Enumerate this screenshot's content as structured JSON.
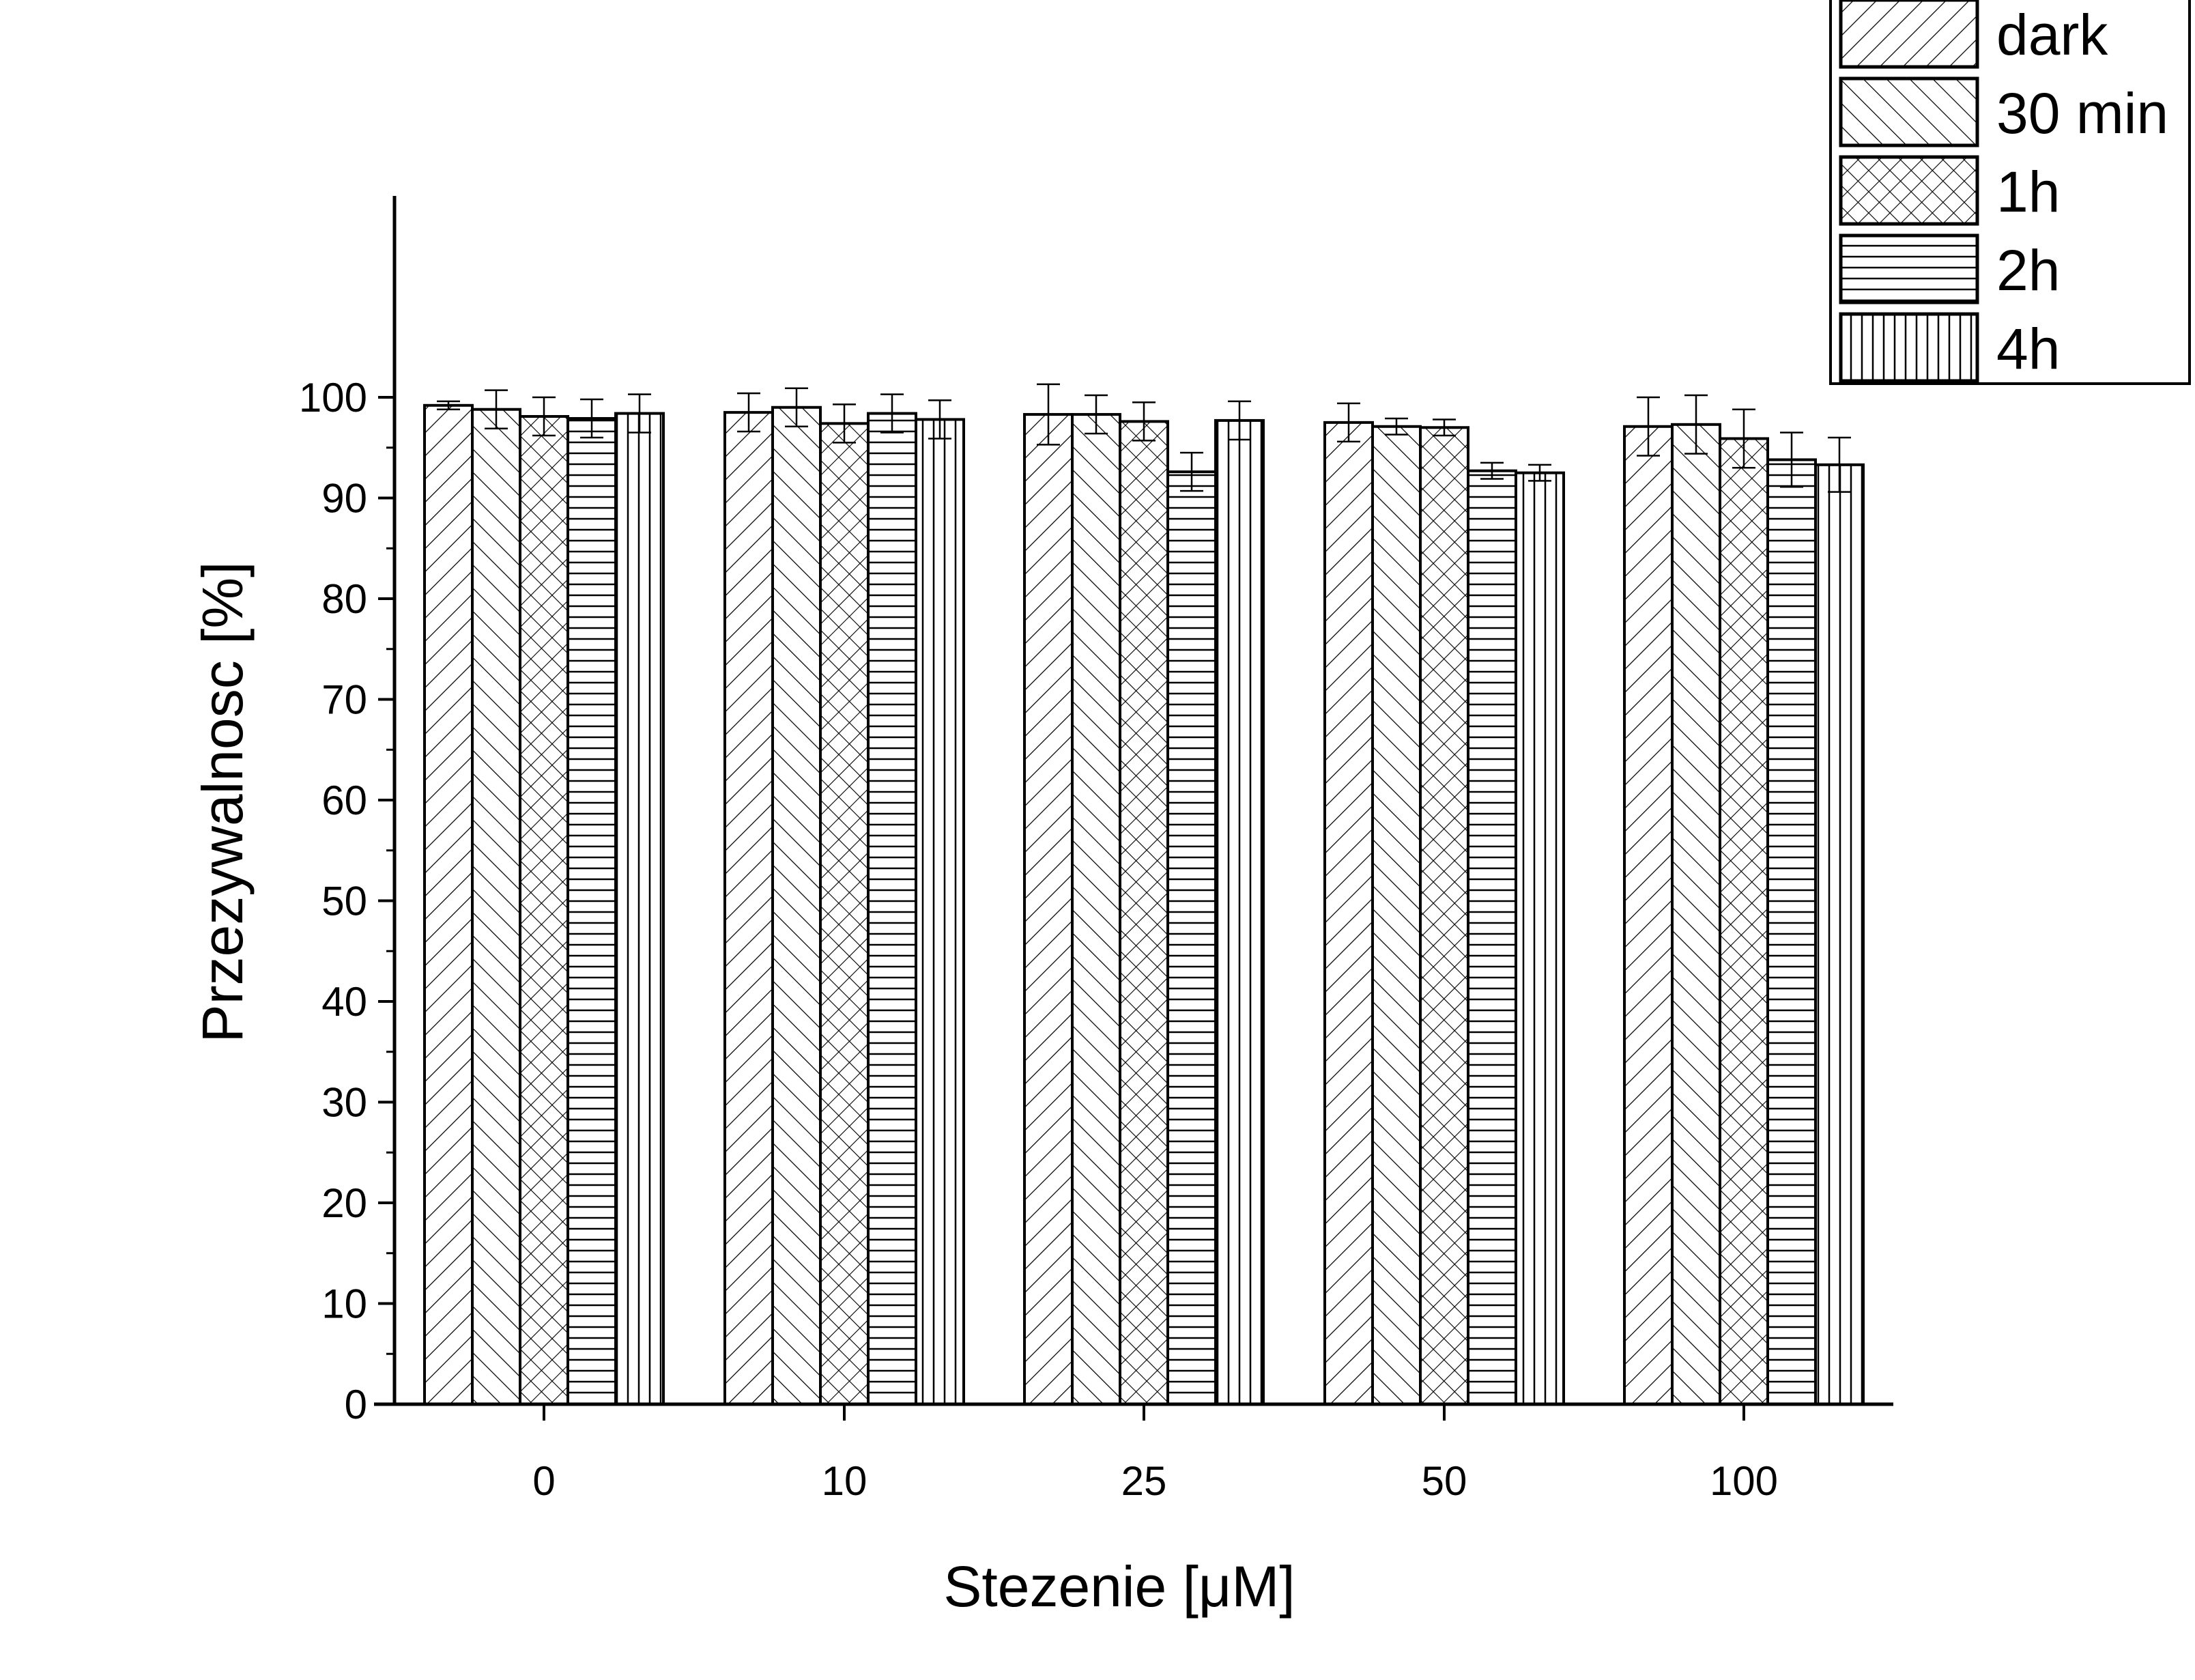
{
  "chart_data": {
    "type": "bar",
    "title": "",
    "xlabel": "Stezenie [μM]",
    "ylabel": "Przezywalnosc [%]",
    "ylim": [
      0,
      120
    ],
    "yticks": [
      0,
      10,
      20,
      30,
      40,
      50,
      60,
      70,
      80,
      90,
      100
    ],
    "categories": [
      "0",
      "10",
      "25",
      "50",
      "100"
    ],
    "grid": false,
    "legend_position": "top-right",
    "bar_fill": "#ffffff",
    "stroke_color": "#000000",
    "series": [
      {
        "name": "dark",
        "pattern": "diag-up",
        "values": [
          99.2,
          98.5,
          98.3,
          97.5,
          97.1
        ],
        "errors": [
          0.4,
          1.9,
          3.0,
          1.9,
          2.9
        ]
      },
      {
        "name": "30 min",
        "pattern": "diag-down",
        "values": [
          98.8,
          99.0,
          98.3,
          97.1,
          97.3
        ],
        "errors": [
          1.9,
          1.9,
          1.9,
          0.8,
          2.9
        ]
      },
      {
        "name": "1h",
        "pattern": "crosshatch",
        "values": [
          98.1,
          97.4,
          97.6,
          97.0,
          95.9
        ],
        "errors": [
          1.9,
          1.9,
          1.9,
          0.8,
          2.9
        ]
      },
      {
        "name": "2h",
        "pattern": "horizontal",
        "values": [
          97.9,
          98.4,
          92.6,
          92.7,
          93.8
        ],
        "errors": [
          1.9,
          1.9,
          1.9,
          0.8,
          2.7
        ]
      },
      {
        "name": "4h",
        "pattern": "vertical",
        "values": [
          98.4,
          97.8,
          97.7,
          92.5,
          93.3
        ],
        "errors": [
          1.9,
          1.9,
          1.9,
          0.8,
          2.7
        ]
      }
    ]
  }
}
